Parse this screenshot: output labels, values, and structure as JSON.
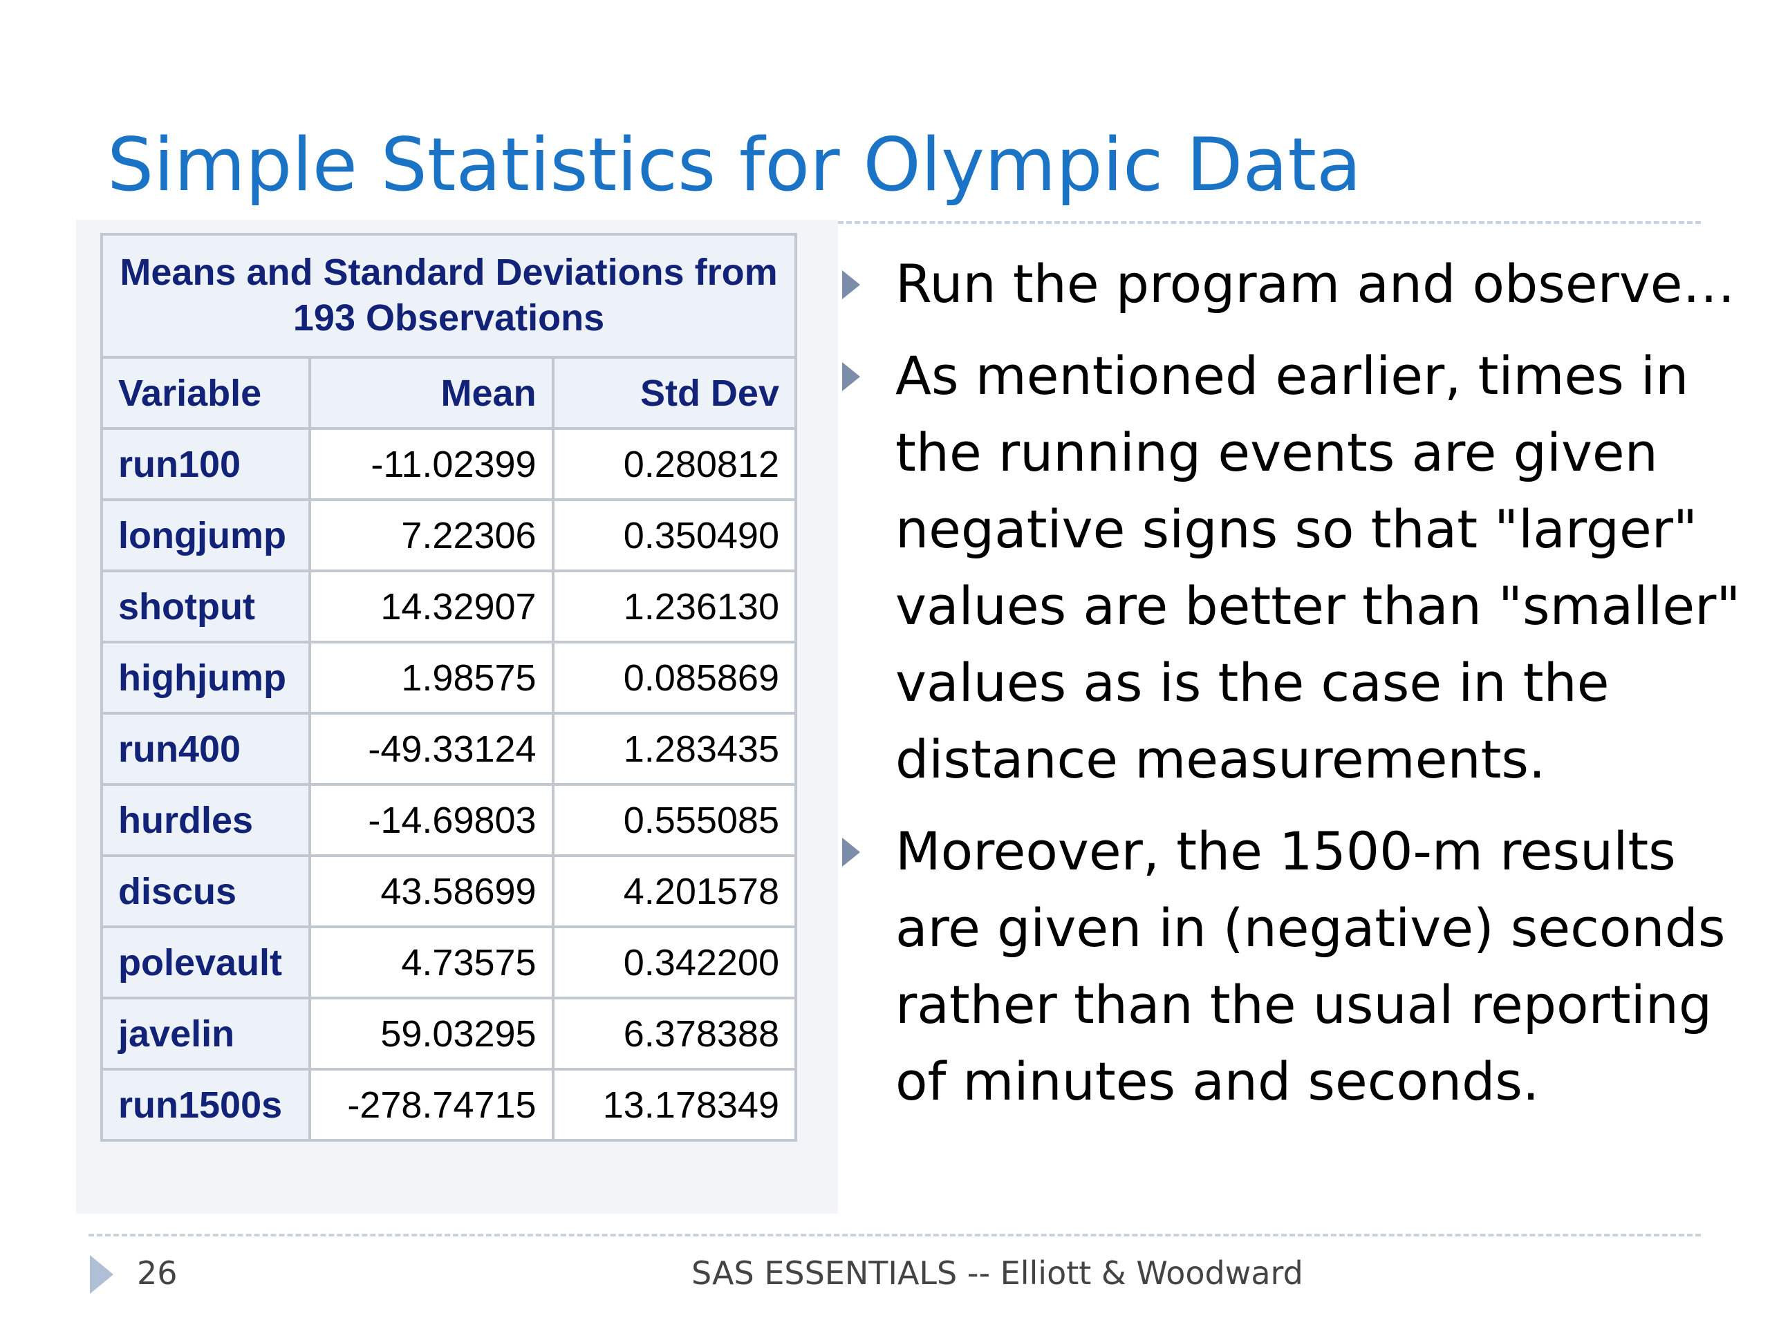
{
  "title": "Simple Statistics for Olympic Data",
  "table": {
    "caption_line1": "Means and Standard Deviations from",
    "caption_line2": "193 Observations",
    "headers": [
      "Variable",
      "Mean",
      "Std Dev"
    ],
    "rows": [
      {
        "variable": "run100",
        "mean": "-11.02399",
        "std": "0.280812"
      },
      {
        "variable": "longjump",
        "mean": "7.22306",
        "std": "0.350490"
      },
      {
        "variable": "shotput",
        "mean": "14.32907",
        "std": "1.236130"
      },
      {
        "variable": "highjump",
        "mean": "1.98575",
        "std": "0.085869"
      },
      {
        "variable": "run400",
        "mean": "-49.33124",
        "std": "1.283435"
      },
      {
        "variable": "hurdles",
        "mean": "-14.69803",
        "std": "0.555085"
      },
      {
        "variable": "discus",
        "mean": "43.58699",
        "std": "4.201578"
      },
      {
        "variable": "polevault",
        "mean": "4.73575",
        "std": "0.342200"
      },
      {
        "variable": "javelin",
        "mean": "59.03295",
        "std": "6.378388"
      },
      {
        "variable": "run1500s",
        "mean": "-278.74715",
        "std": "13.178349"
      }
    ]
  },
  "bullets": [
    "Run the program and observe…",
    "As mentioned earlier, times in the running events are given negative signs so that \"larger\" values are better than \"smaller\" values as is the case in the distance measurements.",
    "Moreover, the 1500-m results are given in (negative) seconds rather than the usual reporting of minutes and seconds."
  ],
  "footer": {
    "page_number": "26",
    "text": "SAS ESSENTIALS -- Elliott & Woodward"
  },
  "colors": {
    "title": "#1A73C4",
    "table_header_text": "#112277",
    "table_header_bg": "#edf2f9",
    "bullet_arrow": "#7b8da8"
  }
}
